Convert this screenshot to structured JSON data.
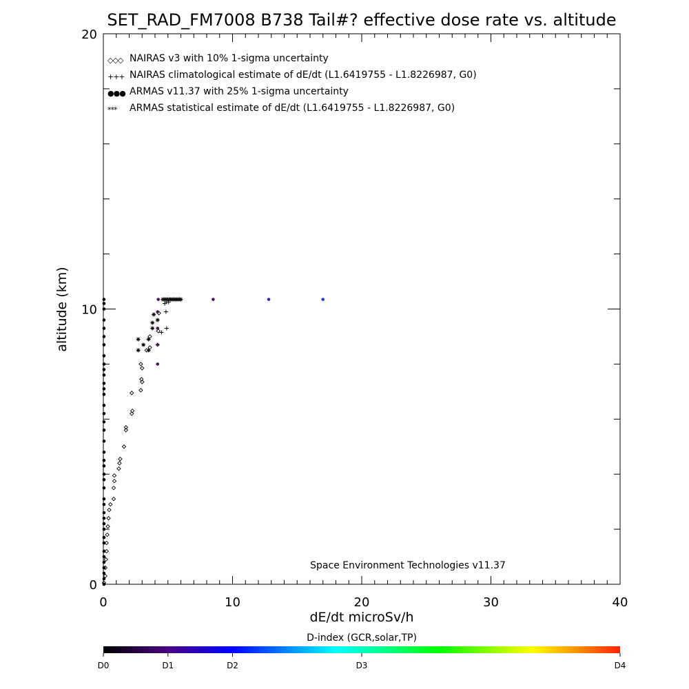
{
  "chart_data": {
    "type": "scatter",
    "title": "SET_RAD_FM7008  B738 Tail#? effective dose rate vs. altitude",
    "xlabel": "dE/dt microSv/h",
    "ylabel": "altitude (km)",
    "xlim": [
      0,
      40
    ],
    "ylim": [
      0,
      20
    ],
    "x_ticks": [
      0,
      10,
      20,
      30,
      40
    ],
    "y_ticks": [
      0,
      10,
      20
    ],
    "x_tick_labels": [
      "0",
      "10",
      "20",
      "30",
      "40"
    ],
    "y_tick_labels": [
      "0",
      "10",
      "20"
    ],
    "grid": false,
    "legend_position": "top-left",
    "credit": "Space Environment Technologies v11.37",
    "legend": [
      {
        "marker": "diamond",
        "marker_text": "◇◇◇",
        "label": "NAIRAS v3 with 10% 1-sigma uncertainty",
        "color": "#000000"
      },
      {
        "marker": "plus",
        "marker_text": "+++",
        "label": "NAIRAS climatological estimate of dE/dt (L1.6419755 - L1.8226987, G0)",
        "color": "#000000"
      },
      {
        "marker": "dot",
        "marker_text": "●●●",
        "label": "ARMAS v11.37 with 25% 1-sigma uncertainty",
        "color": "#0022dd"
      },
      {
        "marker": "asterisk",
        "marker_text": "***",
        "label": "ARMAS statistical estimate of dE/dt (L1.6419755 - L1.8226987, G0)",
        "color": "#000000"
      }
    ],
    "series": [
      {
        "name": "NAIRAS v3 with 10% 1-sigma uncertainty",
        "marker": "diamond",
        "points": [
          [
            0.05,
            0.05
          ],
          [
            0.15,
            0.3
          ],
          [
            0.15,
            0.6
          ],
          [
            0.2,
            0.9
          ],
          [
            0.25,
            1.2
          ],
          [
            0.25,
            1.5
          ],
          [
            0.3,
            1.8
          ],
          [
            0.35,
            2.1
          ],
          [
            0.4,
            2.4
          ],
          [
            0.45,
            2.7
          ],
          [
            0.55,
            2.9
          ],
          [
            0.8,
            3.1
          ],
          [
            0.8,
            3.5
          ],
          [
            0.85,
            3.75
          ],
          [
            0.85,
            3.95
          ],
          [
            1.2,
            4.2
          ],
          [
            1.25,
            4.4
          ],
          [
            1.3,
            4.55
          ],
          [
            1.6,
            5.0
          ],
          [
            1.75,
            5.6
          ],
          [
            1.75,
            5.7
          ],
          [
            2.2,
            6.2
          ],
          [
            2.25,
            6.3
          ],
          [
            2.2,
            6.95
          ],
          [
            2.9,
            7.05
          ],
          [
            3.0,
            7.35
          ],
          [
            2.95,
            7.45
          ],
          [
            3.0,
            7.85
          ],
          [
            2.9,
            8.0
          ],
          [
            3.35,
            8.5
          ],
          [
            3.6,
            8.6
          ],
          [
            3.6,
            9.0
          ],
          [
            4.25,
            9.2
          ],
          [
            4.3,
            9.85
          ]
        ]
      },
      {
        "name": "NAIRAS climatological estimate of dE/dt (L1.6419755 - L1.8226987, G0)",
        "marker": "plus",
        "points": [
          [
            4.2,
            8.7
          ],
          [
            4.5,
            9.15
          ],
          [
            4.9,
            9.3
          ],
          [
            4.85,
            9.9
          ],
          [
            4.75,
            10.2
          ],
          [
            4.9,
            10.25
          ],
          [
            5.05,
            10.25
          ]
        ]
      },
      {
        "name": "ARMAS v11.37 with 25% 1-sigma uncertainty",
        "marker": "dot",
        "points": [
          [
            0.05,
            0.0
          ],
          [
            0.05,
            0.2
          ],
          [
            0.05,
            0.4
          ],
          [
            0.05,
            0.6
          ],
          [
            0.05,
            0.8
          ],
          [
            0.05,
            1.0
          ],
          [
            0.05,
            1.2
          ],
          [
            0.05,
            1.5
          ],
          [
            0.05,
            1.7
          ],
          [
            0.05,
            2.0
          ],
          [
            0.05,
            2.2
          ],
          [
            0.05,
            2.4
          ],
          [
            0.05,
            2.6
          ],
          [
            0.05,
            2.9
          ],
          [
            0.05,
            3.1
          ],
          [
            0.05,
            3.5
          ],
          [
            0.05,
            3.8
          ],
          [
            0.05,
            4.0
          ],
          [
            0.05,
            4.3
          ],
          [
            0.05,
            4.5
          ],
          [
            0.05,
            4.8
          ],
          [
            0.05,
            5.2
          ],
          [
            0.05,
            5.6
          ],
          [
            0.05,
            5.9
          ],
          [
            0.05,
            6.2
          ],
          [
            0.05,
            6.5
          ],
          [
            0.05,
            6.9
          ],
          [
            0.05,
            7.1
          ],
          [
            0.05,
            7.3
          ],
          [
            0.05,
            7.6
          ],
          [
            0.05,
            7.8
          ],
          [
            0.05,
            8.0
          ],
          [
            0.05,
            8.3
          ],
          [
            0.05,
            8.7
          ],
          [
            0.05,
            9.0
          ],
          [
            0.05,
            9.3
          ],
          [
            0.05,
            9.6
          ],
          [
            0.05,
            10.0
          ],
          [
            0.05,
            10.2
          ],
          [
            0.05,
            10.35
          ],
          [
            4.2,
            8.0
          ],
          [
            4.2,
            8.7
          ],
          [
            4.2,
            9.3
          ],
          [
            4.2,
            9.9
          ],
          [
            4.25,
            10.35
          ],
          [
            8.5,
            10.35
          ],
          [
            12.8,
            10.35
          ],
          [
            17.0,
            10.35
          ]
        ],
        "colors": [
          "#000000",
          "#000000",
          "#000000",
          "#000000",
          "#000000",
          "#000000",
          "#000000",
          "#000000",
          "#000000",
          "#000000",
          "#000000",
          "#000000",
          "#000000",
          "#000000",
          "#000000",
          "#000000",
          "#000000",
          "#000000",
          "#000000",
          "#000000",
          "#000000",
          "#000000",
          "#000000",
          "#000000",
          "#000000",
          "#000000",
          "#000000",
          "#000000",
          "#000000",
          "#000000",
          "#000000",
          "#000000",
          "#000000",
          "#000000",
          "#000000",
          "#000000",
          "#000000",
          "#000000",
          "#000000",
          "#000000",
          "#4a1456",
          "#4a1456",
          "#4a1456",
          "#4a1456",
          "#4a1456",
          "#4a1456",
          "#3b22b0",
          "#1b3ce0"
        ]
      },
      {
        "name": "ARMAS statistical estimate of dE/dt (L1.6419755 - L1.8226987, G0)",
        "marker": "asterisk",
        "points": [
          [
            2.7,
            8.9
          ],
          [
            2.7,
            8.5
          ],
          [
            3.1,
            8.7
          ],
          [
            3.5,
            8.9
          ],
          [
            3.5,
            8.5
          ],
          [
            3.8,
            9.3
          ],
          [
            3.8,
            9.5
          ],
          [
            3.9,
            9.8
          ],
          [
            4.2,
            9.6
          ],
          [
            4.6,
            10.35
          ],
          [
            4.7,
            10.35
          ],
          [
            4.8,
            10.35
          ],
          [
            4.9,
            10.35
          ],
          [
            5.0,
            10.35
          ],
          [
            5.1,
            10.35
          ],
          [
            5.2,
            10.35
          ],
          [
            5.3,
            10.35
          ],
          [
            5.4,
            10.35
          ],
          [
            5.5,
            10.35
          ],
          [
            5.6,
            10.35
          ],
          [
            5.7,
            10.35
          ],
          [
            5.8,
            10.35
          ],
          [
            5.9,
            10.35
          ],
          [
            6.0,
            10.35
          ]
        ]
      }
    ],
    "colorbar": {
      "title": "D-index (GCR,solar,TP)",
      "stops": [
        "#000000",
        "#4b0082",
        "#0000ff",
        "#00ffff",
        "#00ff00",
        "#ffff00",
        "#ff2200"
      ],
      "ticks": [
        {
          "label": "D0",
          "frac": 0.0
        },
        {
          "label": "D1",
          "frac": 0.125
        },
        {
          "label": "D2",
          "frac": 0.25
        },
        {
          "label": "D3",
          "frac": 0.5
        },
        {
          "label": "D4",
          "frac": 1.0
        }
      ]
    }
  }
}
